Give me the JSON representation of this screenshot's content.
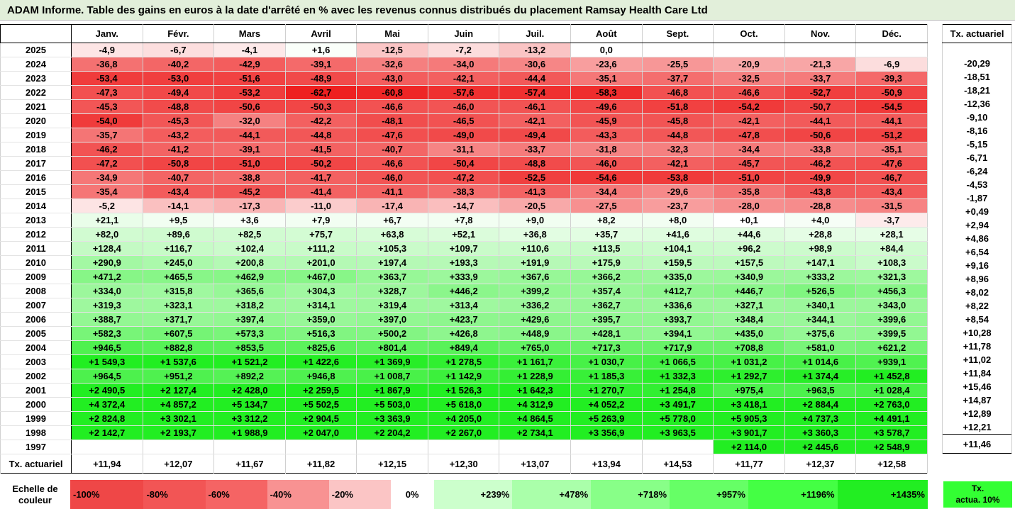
{
  "title": "ADAM Informe. Table des gains en euros à la date d'arrêté en % avec les revenus connus distribués du placement Ramsay Health Care Ltd",
  "months": [
    "Janv.",
    "Févr.",
    "Mars",
    "Avril",
    "Mai",
    "Juin",
    "Juil.",
    "Août",
    "Sept.",
    "Oct.",
    "Nov.",
    "Déc."
  ],
  "actuarial_header": "Tx. actuariel",
  "rows": [
    {
      "year": "2025",
      "cells": [
        "-4,9",
        "-6,7",
        "-4,1",
        "+1,6",
        "-12,5",
        "-7,2",
        "-13,2",
        "0,0",
        "",
        "",
        "",
        ""
      ],
      "act": ""
    },
    {
      "year": "2024",
      "cells": [
        "-36,8",
        "-40,2",
        "-42,9",
        "-39,1",
        "-32,6",
        "-34,0",
        "-30,6",
        "-23,6",
        "-25,5",
        "-20,9",
        "-21,3",
        "-6,9"
      ],
      "act": "-20,29"
    },
    {
      "year": "2023",
      "cells": [
        "-53,4",
        "-53,0",
        "-51,6",
        "-48,9",
        "-43,0",
        "-42,1",
        "-44,4",
        "-35,1",
        "-37,7",
        "-32,5",
        "-33,7",
        "-39,3"
      ],
      "act": "-18,51"
    },
    {
      "year": "2022",
      "cells": [
        "-47,3",
        "-49,4",
        "-53,2",
        "-62,7",
        "-60,8",
        "-57,6",
        "-57,4",
        "-58,3",
        "-46,8",
        "-46,6",
        "-52,7",
        "-50,9"
      ],
      "act": "-18,21"
    },
    {
      "year": "2021",
      "cells": [
        "-45,3",
        "-48,8",
        "-50,6",
        "-50,3",
        "-46,6",
        "-46,0",
        "-46,1",
        "-49,6",
        "-51,8",
        "-54,2",
        "-50,7",
        "-54,5"
      ],
      "act": "-12,36"
    },
    {
      "year": "2020",
      "cells": [
        "-54,0",
        "-45,3",
        "-32,0",
        "-42,2",
        "-48,1",
        "-46,5",
        "-42,1",
        "-45,9",
        "-45,8",
        "-42,1",
        "-44,1",
        "-44,1"
      ],
      "act": "-9,10"
    },
    {
      "year": "2019",
      "cells": [
        "-35,7",
        "-43,2",
        "-44,1",
        "-44,8",
        "-47,6",
        "-49,0",
        "-49,4",
        "-43,3",
        "-44,8",
        "-47,8",
        "-50,6",
        "-51,2"
      ],
      "act": "-8,16"
    },
    {
      "year": "2018",
      "cells": [
        "-46,2",
        "-41,2",
        "-39,1",
        "-41,5",
        "-40,7",
        "-31,1",
        "-33,7",
        "-31,8",
        "-32,3",
        "-34,4",
        "-33,8",
        "-35,1"
      ],
      "act": "-5,15"
    },
    {
      "year": "2017",
      "cells": [
        "-47,2",
        "-50,8",
        "-51,0",
        "-50,2",
        "-46,6",
        "-50,4",
        "-48,8",
        "-46,0",
        "-42,1",
        "-45,7",
        "-46,2",
        "-47,6"
      ],
      "act": "-6,71"
    },
    {
      "year": "2016",
      "cells": [
        "-34,9",
        "-40,7",
        "-38,8",
        "-41,7",
        "-46,0",
        "-47,2",
        "-52,5",
        "-54,6",
        "-53,8",
        "-51,0",
        "-49,9",
        "-46,7"
      ],
      "act": "-6,24"
    },
    {
      "year": "2015",
      "cells": [
        "-35,4",
        "-43,4",
        "-45,2",
        "-41,4",
        "-41,1",
        "-38,3",
        "-41,3",
        "-34,4",
        "-29,6",
        "-35,8",
        "-43,8",
        "-43,4"
      ],
      "act": "-4,53"
    },
    {
      "year": "2014",
      "cells": [
        "-5,2",
        "-14,1",
        "-17,3",
        "-11,0",
        "-17,4",
        "-14,7",
        "-20,5",
        "-27,5",
        "-23,7",
        "-28,0",
        "-28,8",
        "-31,5"
      ],
      "act": "-1,87"
    },
    {
      "year": "2013",
      "cells": [
        "+21,1",
        "+9,5",
        "+3,6",
        "+7,9",
        "+6,7",
        "+7,8",
        "+9,0",
        "+8,2",
        "+8,0",
        "+0,1",
        "+4,0",
        "-3,7"
      ],
      "act": "+0,49"
    },
    {
      "year": "2012",
      "cells": [
        "+82,0",
        "+89,6",
        "+82,5",
        "+75,7",
        "+63,8",
        "+52,1",
        "+36,8",
        "+35,7",
        "+41,6",
        "+44,6",
        "+28,8",
        "+28,1"
      ],
      "act": "+2,94"
    },
    {
      "year": "2011",
      "cells": [
        "+128,4",
        "+116,7",
        "+102,4",
        "+111,2",
        "+105,3",
        "+109,7",
        "+110,6",
        "+113,5",
        "+104,1",
        "+96,2",
        "+98,9",
        "+84,4"
      ],
      "act": "+4,86"
    },
    {
      "year": "2010",
      "cells": [
        "+290,9",
        "+245,0",
        "+200,8",
        "+201,0",
        "+197,4",
        "+193,3",
        "+191,9",
        "+175,9",
        "+159,5",
        "+157,5",
        "+147,1",
        "+108,3"
      ],
      "act": "+6,54"
    },
    {
      "year": "2009",
      "cells": [
        "+471,2",
        "+465,5",
        "+462,9",
        "+467,0",
        "+363,7",
        "+333,9",
        "+367,6",
        "+366,2",
        "+335,0",
        "+340,9",
        "+333,2",
        "+321,3"
      ],
      "act": "+9,16"
    },
    {
      "year": "2008",
      "cells": [
        "+334,0",
        "+315,8",
        "+365,6",
        "+304,3",
        "+328,7",
        "+446,2",
        "+399,2",
        "+357,4",
        "+412,7",
        "+446,7",
        "+526,5",
        "+456,3"
      ],
      "act": "+8,96"
    },
    {
      "year": "2007",
      "cells": [
        "+319,3",
        "+323,1",
        "+318,2",
        "+314,1",
        "+319,4",
        "+313,4",
        "+336,2",
        "+362,7",
        "+336,6",
        "+327,1",
        "+340,1",
        "+343,0"
      ],
      "act": "+8,02"
    },
    {
      "year": "2006",
      "cells": [
        "+388,7",
        "+371,7",
        "+397,4",
        "+359,0",
        "+397,0",
        "+423,7",
        "+429,6",
        "+395,7",
        "+393,7",
        "+348,4",
        "+344,1",
        "+399,6"
      ],
      "act": "+8,22"
    },
    {
      "year": "2005",
      "cells": [
        "+582,3",
        "+607,5",
        "+573,3",
        "+516,3",
        "+500,2",
        "+426,8",
        "+448,9",
        "+428,1",
        "+394,1",
        "+435,0",
        "+375,6",
        "+399,5"
      ],
      "act": "+8,54"
    },
    {
      "year": "2004",
      "cells": [
        "+946,5",
        "+882,8",
        "+853,5",
        "+825,6",
        "+801,4",
        "+849,4",
        "+765,0",
        "+717,3",
        "+717,9",
        "+708,8",
        "+581,0",
        "+621,2"
      ],
      "act": "+10,28"
    },
    {
      "year": "2003",
      "cells": [
        "+1 549,3",
        "+1 537,6",
        "+1 521,2",
        "+1 422,6",
        "+1 369,9",
        "+1 278,5",
        "+1 161,7",
        "+1 030,7",
        "+1 066,5",
        "+1 031,2",
        "+1 014,6",
        "+939,1"
      ],
      "act": "+11,78"
    },
    {
      "year": "2002",
      "cells": [
        "+964,5",
        "+951,2",
        "+892,2",
        "+946,8",
        "+1 008,7",
        "+1 142,9",
        "+1 228,9",
        "+1 185,3",
        "+1 332,3",
        "+1 292,7",
        "+1 374,4",
        "+1 452,8"
      ],
      "act": "+11,02"
    },
    {
      "year": "2001",
      "cells": [
        "+2 490,5",
        "+2 127,4",
        "+2 428,0",
        "+2 259,5",
        "+1 867,9",
        "+1 526,3",
        "+1 642,3",
        "+1 270,7",
        "+1 254,8",
        "+975,4",
        "+963,5",
        "+1 028,4"
      ],
      "act": "+11,84"
    },
    {
      "year": "2000",
      "cells": [
        "+4 372,4",
        "+4 857,2",
        "+5 134,7",
        "+5 502,5",
        "+5 503,0",
        "+5 618,0",
        "+4 312,9",
        "+4 052,2",
        "+3 491,7",
        "+3 418,1",
        "+2 884,4",
        "+2 763,0"
      ],
      "act": "+15,46"
    },
    {
      "year": "1999",
      "cells": [
        "+2 824,8",
        "+3 302,1",
        "+3 312,2",
        "+2 904,5",
        "+3 363,9",
        "+4 205,0",
        "+4 864,5",
        "+5 263,9",
        "+5 778,0",
        "+5 905,3",
        "+4 737,3",
        "+4 491,1"
      ],
      "act": "+14,87"
    },
    {
      "year": "1998",
      "cells": [
        "+2 142,7",
        "+2 193,7",
        "+1 988,9",
        "+2 047,0",
        "+2 204,2",
        "+2 267,0",
        "+2 734,1",
        "+3 356,9",
        "+3 963,5",
        "+3 901,7",
        "+3 360,3",
        "+3 578,7"
      ],
      "act": "+12,89"
    },
    {
      "year": "1997",
      "cells": [
        "",
        "",
        "",
        "",
        "",
        "",
        "",
        "",
        "",
        "+2 114,0",
        "+2 445,6",
        "+2 548,9"
      ],
      "act": "+12,21"
    }
  ],
  "footer": {
    "label": "Tx. actuariel",
    "cells": [
      "+11,94",
      "+12,07",
      "+11,67",
      "+11,82",
      "+12,15",
      "+12,30",
      "+13,07",
      "+13,94",
      "+14,53",
      "+11,77",
      "+12,37",
      "+12,58"
    ],
    "act": "+11,46"
  },
  "scale": {
    "label_line1": "Echelle de",
    "label_line2": "couleur",
    "items": [
      {
        "text": "-100%",
        "color": "#ef4747",
        "align": "left"
      },
      {
        "text": "-80%",
        "color": "#f25555",
        "align": "left"
      },
      {
        "text": "-60%",
        "color": "#f56464",
        "align": "left"
      },
      {
        "text": "-40%",
        "color": "#f89292",
        "align": "left"
      },
      {
        "text": "-20%",
        "color": "#fbc5c5",
        "align": "left"
      },
      {
        "text": "0%",
        "color": "#ffffff",
        "align": "center"
      },
      {
        "text": "+239%",
        "color": "#ccffcc",
        "align": "right"
      },
      {
        "text": "+478%",
        "color": "#aaffaa",
        "align": "right"
      },
      {
        "text": "+718%",
        "color": "#88ff88",
        "align": "right"
      },
      {
        "text": "+957%",
        "color": "#66ff66",
        "align": "right"
      },
      {
        "text": "+1196%",
        "color": "#44ff44",
        "align": "right"
      },
      {
        "text": "+1435%",
        "color": "#22ee22",
        "align": "right"
      }
    ],
    "act_legend_line1": "Tx.",
    "act_legend_line2": "actua. 10%",
    "act_legend_color": "#33ff33"
  }
}
